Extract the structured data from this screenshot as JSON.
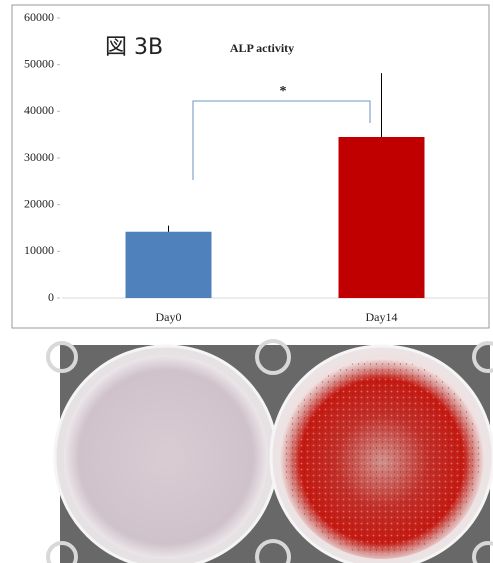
{
  "chart_data": {
    "type": "bar",
    "label": "図 3B",
    "title": "ALP activity",
    "categories": [
      "Day0",
      "Day14"
    ],
    "values": [
      14200,
      34500
    ],
    "errors": [
      1300,
      13700
    ],
    "colors": [
      "#4f81bd",
      "#c00000"
    ],
    "error_color": "#000000",
    "ylim": [
      0,
      60000
    ],
    "yticks": [
      0,
      10000,
      20000,
      30000,
      40000,
      50000,
      60000
    ],
    "grid": false,
    "annotation": "*"
  }
}
